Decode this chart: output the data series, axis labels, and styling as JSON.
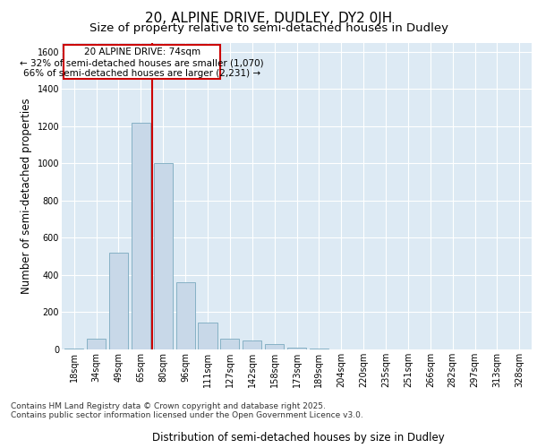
{
  "title_line1": "20, ALPINE DRIVE, DUDLEY, DY2 0JH",
  "title_line2": "Size of property relative to semi-detached houses in Dudley",
  "xlabel": "Distribution of semi-detached houses by size in Dudley",
  "ylabel": "Number of semi-detached properties",
  "categories": [
    "18sqm",
    "34sqm",
    "49sqm",
    "65sqm",
    "80sqm",
    "96sqm",
    "111sqm",
    "127sqm",
    "142sqm",
    "158sqm",
    "173sqm",
    "189sqm",
    "204sqm",
    "220sqm",
    "235sqm",
    "251sqm",
    "266sqm",
    "282sqm",
    "297sqm",
    "313sqm",
    "328sqm"
  ],
  "values": [
    5,
    60,
    520,
    1220,
    1000,
    360,
    145,
    60,
    50,
    30,
    10,
    5,
    2,
    0,
    0,
    0,
    0,
    0,
    0,
    0,
    0
  ],
  "bar_color": "#c8d8e8",
  "bar_edge_color": "#7aaabf",
  "subject_label": "20 ALPINE DRIVE: 74sqm",
  "smaller_text": "← 32% of semi-detached houses are smaller (1,070)",
  "larger_text": "66% of semi-detached houses are larger (2,231) →",
  "red_line_color": "#cc0000",
  "annotation_box_edge": "#cc0000",
  "ylim": [
    0,
    1650
  ],
  "yticks": [
    0,
    200,
    400,
    600,
    800,
    1000,
    1200,
    1400,
    1600
  ],
  "grid_color": "#c8d8e8",
  "background_color": "#ddeaf4",
  "footer_line1": "Contains HM Land Registry data © Crown copyright and database right 2025.",
  "footer_line2": "Contains public sector information licensed under the Open Government Licence v3.0.",
  "title_fontsize": 11,
  "subtitle_fontsize": 9.5,
  "axis_label_fontsize": 8.5,
  "tick_fontsize": 7,
  "annotation_fontsize": 7.5,
  "footer_fontsize": 6.5
}
